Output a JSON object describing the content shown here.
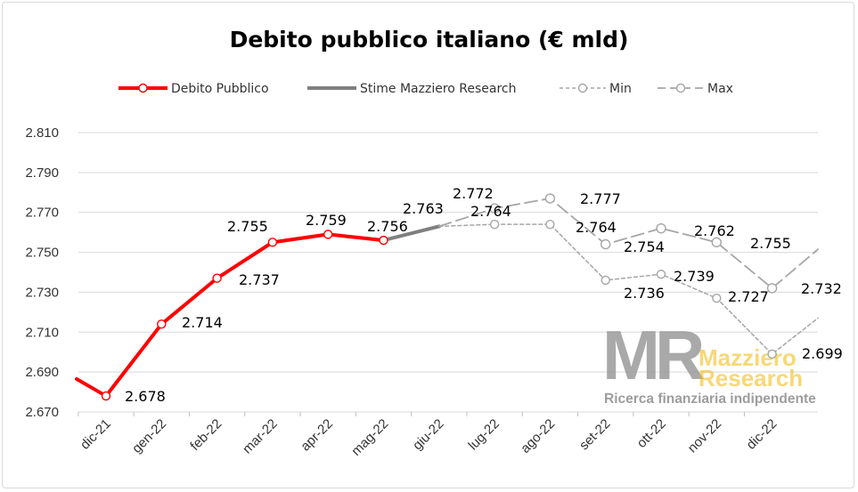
{
  "chart_data": {
    "type": "line",
    "title": "Debito pubblico italiano (€ mld)",
    "categories": [
      "dic-21",
      "gen-22",
      "feb-22",
      "mar-22",
      "apr-22",
      "mag-22",
      "giu-22",
      "lug-22",
      "ago-22",
      "set-22",
      "ott-22",
      "nov-22",
      "dic-22"
    ],
    "ylim": [
      2670,
      2810
    ],
    "yticks": [
      2670,
      2690,
      2710,
      2730,
      2750,
      2770,
      2790,
      2810
    ],
    "ytick_labels": [
      "2.670",
      "2.690",
      "2.710",
      "2.730",
      "2.750",
      "2.770",
      "2.790",
      "2.810"
    ],
    "grid": true,
    "legend_position": "top",
    "series": [
      {
        "name": "Debito Pubblico",
        "color": "#ff0000",
        "values": [
          2678,
          2714,
          2737,
          2755,
          2759,
          2756,
          null,
          null,
          null,
          null,
          null,
          null,
          null
        ],
        "labels": [
          "2.678",
          "2.714",
          "2.737",
          "2.755",
          "2.759",
          "2.756"
        ]
      },
      {
        "name": "Stime Mazziero Research",
        "color": "#7f7f7f",
        "values": [
          null,
          null,
          null,
          null,
          null,
          2756,
          2763,
          null,
          null,
          null,
          null,
          null,
          null
        ],
        "labels": [
          "2.763"
        ]
      },
      {
        "name": "Min",
        "color": "#a6a6a6",
        "values": [
          null,
          null,
          null,
          null,
          null,
          null,
          2763,
          2764,
          2764,
          2736,
          2739,
          2727,
          2699
        ],
        "labels": [
          "2.764",
          "2.764",
          "2.736",
          "2.739",
          "2.727",
          "2.699"
        ]
      },
      {
        "name": "Max",
        "color": "#a6a6a6",
        "values": [
          null,
          null,
          null,
          null,
          null,
          null,
          2763,
          2772,
          2777,
          2754,
          2762,
          2755,
          2732
        ],
        "labels": [
          "2.772",
          "2.777",
          "2.754",
          "2.762",
          "2.755",
          "2.732"
        ]
      }
    ]
  },
  "watermark": {
    "logo_letters": "MR",
    "line1": "Mazziero",
    "line2": "Research",
    "tagline": "Ricerca finanziaria indipendente",
    "logo_color": "#8c8c8c",
    "name_color": "#f2b705"
  }
}
